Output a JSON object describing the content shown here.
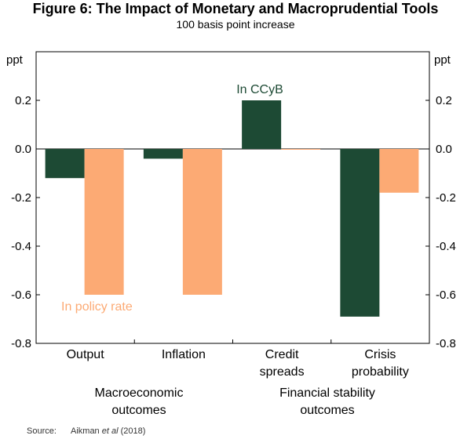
{
  "chart_data": {
    "type": "bar",
    "title": "Figure 6: The Impact of Monetary and Macroprudential Tools",
    "subtitle": "100 basis point increase",
    "ylabel_left": "ppt",
    "ylabel_right": "ppt",
    "ylim": [
      -0.8,
      0.4
    ],
    "yticks": [
      0.2,
      0.0,
      -0.2,
      -0.4,
      -0.6,
      -0.8
    ],
    "ytick_labels": [
      "0.2",
      "0.0",
      "-0.2",
      "-0.4",
      "-0.6",
      "-0.8"
    ],
    "categories": [
      {
        "line1": "Output",
        "line2": ""
      },
      {
        "line1": "Inflation",
        "line2": ""
      },
      {
        "line1": "Credit",
        "line2": "spreads"
      },
      {
        "line1": "Crisis",
        "line2": "probability"
      }
    ],
    "series": [
      {
        "name": "In CCyB",
        "color": "#1d4a34",
        "values": [
          -0.12,
          -0.04,
          0.2,
          -0.69
        ]
      },
      {
        "name": "In policy rate",
        "color": "#fcaa74",
        "values": [
          -0.6,
          -0.6,
          0.0,
          -0.18
        ]
      }
    ],
    "groups": [
      {
        "line1": "Macroeconomic",
        "line2": "outcomes"
      },
      {
        "line1": "Financial stability",
        "line2": "outcomes"
      }
    ],
    "annotations": {
      "ccyb": "In CCyB",
      "policy": "In policy rate"
    }
  },
  "source": {
    "label": "Source:",
    "text_before": "Aikman ",
    "text_italic": "et al",
    "text_after": " (2018)"
  }
}
